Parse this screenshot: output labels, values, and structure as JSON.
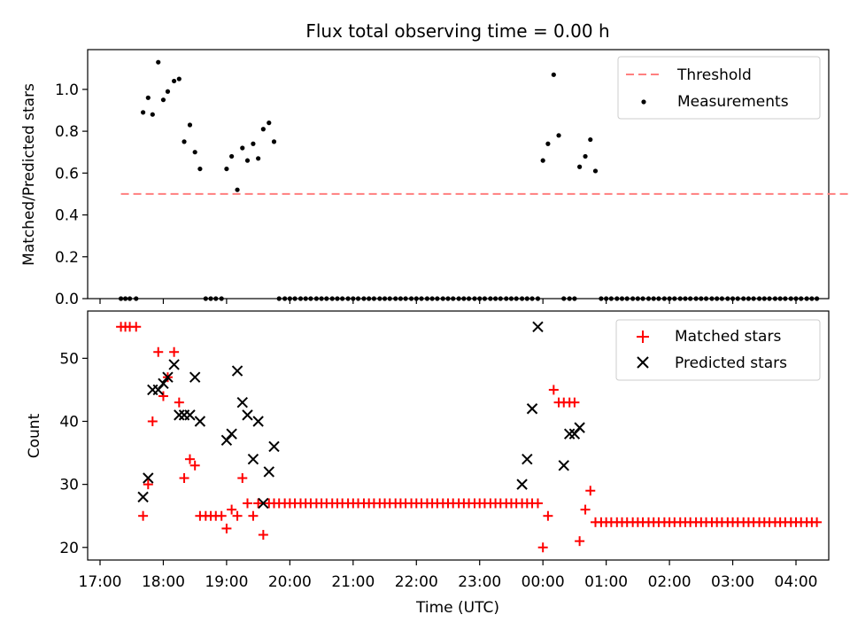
{
  "chart_data": [
    {
      "type": "scatter",
      "title": "Flux total observing time = 0.00 h",
      "xlabel": "",
      "ylabel": "Matched/Predicted stars",
      "ylim": [
        0,
        1.19
      ],
      "yticks": [
        0.0,
        0.2,
        0.4,
        0.6,
        0.8,
        1.0
      ],
      "ytick_labels": [
        "0.0",
        "0.2",
        "0.4",
        "0.6",
        "0.8",
        "1.0"
      ],
      "x_unit": "hours since 17:00 UTC (axis shows clock time)",
      "xlim": [
        -0.2,
        11.35
      ],
      "legend_position": "top-right",
      "threshold": {
        "name": "Threshold",
        "color": "#ff7f7f",
        "style": "dashed",
        "x": [
          0.33,
          11.9
        ],
        "y": [
          0.5,
          0.5
        ]
      },
      "series": [
        {
          "name": "Measurements",
          "marker": "dot",
          "color": "#000000",
          "x": [
            0.33,
            0.4,
            0.47,
            0.57,
            0.68,
            0.76,
            0.83,
            0.92,
            1.0,
            1.07,
            1.17,
            1.25,
            1.33,
            1.42,
            1.5,
            1.58,
            1.67,
            1.75,
            1.83,
            1.92,
            2.0,
            2.08,
            2.17,
            2.25,
            2.33,
            2.42,
            2.5,
            2.58,
            2.67,
            2.75,
            2.83,
            2.92,
            3.0,
            3.08,
            3.17,
            3.25,
            3.33,
            3.42,
            3.5,
            3.58,
            3.67,
            3.75,
            3.83,
            3.92,
            4.0,
            4.08,
            4.17,
            4.25,
            4.33,
            4.42,
            4.5,
            4.58,
            4.67,
            4.75,
            4.83,
            4.92,
            5.0,
            5.08,
            5.17,
            5.25,
            5.33,
            5.42,
            5.5,
            5.58,
            5.67,
            5.75,
            5.83,
            5.92,
            6.0,
            6.08,
            6.17,
            6.25,
            6.33,
            6.42,
            6.5,
            6.58,
            6.67,
            6.75,
            6.83,
            6.92,
            7.0,
            7.08,
            7.17,
            7.25,
            7.33,
            7.42,
            7.5,
            7.58,
            7.67,
            7.75,
            7.83,
            7.92,
            8.0,
            8.08,
            8.17,
            8.25,
            8.33,
            8.42,
            8.5,
            8.58,
            8.67,
            8.75,
            8.83,
            8.92,
            9.0,
            9.08,
            9.17,
            9.25,
            9.33,
            9.42,
            9.5,
            9.58,
            9.67,
            9.75,
            9.83,
            9.92,
            10.0,
            10.08,
            10.17,
            10.25,
            10.33,
            10.42,
            10.5,
            10.58,
            10.67,
            10.75,
            10.83,
            10.92,
            11.0,
            11.08,
            11.17,
            11.25,
            11.33
          ],
          "y": [
            0,
            0,
            0,
            0,
            0.89,
            0.96,
            0.88,
            1.13,
            0.95,
            0.99,
            1.04,
            1.05,
            0.75,
            0.83,
            0.7,
            0.62,
            0,
            0,
            0,
            0,
            0.62,
            0.68,
            0.52,
            0.72,
            0.66,
            0.74,
            0.67,
            0.81,
            0.84,
            0.75,
            0,
            0,
            0,
            0,
            0,
            0,
            0,
            0,
            0,
            0,
            0,
            0,
            0,
            0,
            0,
            0,
            0,
            0,
            0,
            0,
            0,
            0,
            0,
            0,
            0,
            0,
            0,
            0,
            0,
            0,
            0,
            0,
            0,
            0,
            0,
            0,
            0,
            0,
            0,
            0,
            0,
            0,
            0,
            0,
            0,
            0,
            0,
            0,
            0,
            0,
            0.66,
            0.74,
            1.07,
            0.78,
            0,
            0,
            0,
            0.63,
            0.68,
            0.76,
            0.61,
            0,
            0,
            0,
            0,
            0,
            0,
            0,
            0,
            0,
            0,
            0,
            0,
            0,
            0,
            0,
            0,
            0,
            0,
            0,
            0,
            0,
            0,
            0,
            0,
            0,
            0,
            0,
            0,
            0,
            0,
            0,
            0,
            0,
            0,
            0,
            0,
            0,
            0,
            0,
            0,
            0,
            0
          ]
        }
      ]
    },
    {
      "type": "scatter",
      "title": "",
      "xlabel": "Time (UTC)",
      "ylabel": "Count",
      "ylim": [
        18.0,
        57.5
      ],
      "yticks": [
        20,
        30,
        40,
        50
      ],
      "ytick_labels": [
        "20",
        "30",
        "40",
        "50"
      ],
      "x_unit": "hours since 17:00 UTC (axis shows clock time)",
      "xlim": [
        -0.2,
        11.35
      ],
      "xticks": [
        0,
        1,
        2,
        3,
        4,
        5,
        6,
        7,
        8,
        9,
        10,
        11
      ],
      "xtick_labels": [
        "17:00",
        "18:00",
        "19:00",
        "20:00",
        "21:00",
        "22:00",
        "23:00",
        "00:00",
        "01:00",
        "02:00",
        "03:00",
        "04:00"
      ],
      "legend_position": "top-right",
      "series": [
        {
          "name": "Matched stars",
          "marker": "plus",
          "color": "#ff0000",
          "x": [
            0.33,
            0.4,
            0.47,
            0.57,
            0.68,
            0.76,
            0.83,
            0.92,
            1.0,
            1.07,
            1.17,
            1.25,
            1.33,
            1.42,
            1.5,
            1.58,
            1.67,
            1.75,
            1.83,
            1.92,
            2.0,
            2.08,
            2.17,
            2.25,
            2.33,
            2.42,
            2.5,
            2.58,
            2.67,
            2.75,
            2.83,
            2.92,
            3.0,
            3.08,
            3.17,
            3.25,
            3.33,
            3.42,
            3.5,
            3.58,
            3.67,
            3.75,
            3.83,
            3.92,
            4.0,
            4.08,
            4.17,
            4.25,
            4.33,
            4.42,
            4.5,
            4.58,
            4.67,
            4.75,
            4.83,
            4.92,
            5.0,
            5.08,
            5.17,
            5.25,
            5.33,
            5.42,
            5.5,
            5.58,
            5.67,
            5.75,
            5.83,
            5.92,
            6.0,
            6.08,
            6.17,
            6.25,
            6.33,
            6.42,
            6.5,
            6.58,
            6.67,
            6.75,
            6.83,
            6.92,
            7.0,
            7.08,
            7.17,
            7.25,
            7.33,
            7.42,
            7.5,
            7.58,
            7.67,
            7.75,
            7.83,
            7.92,
            8.0,
            8.08,
            8.17,
            8.25,
            8.33,
            8.42,
            8.5,
            8.58,
            8.67,
            8.75,
            8.83,
            8.92,
            9.0,
            9.08,
            9.17,
            9.25,
            9.33,
            9.42,
            9.5,
            9.58,
            9.67,
            9.75,
            9.83,
            9.92,
            10.0,
            10.08,
            10.17,
            10.25,
            10.33,
            10.42,
            10.5,
            10.58,
            10.67,
            10.75,
            10.83,
            10.92,
            11.0,
            11.08,
            11.17,
            11.25,
            11.33
          ],
          "y": [
            55,
            55,
            55,
            55,
            25,
            30,
            40,
            51,
            44,
            47,
            51,
            43,
            31,
            34,
            33,
            25,
            25,
            25,
            25,
            25,
            23,
            26,
            25,
            31,
            27,
            25,
            27,
            22,
            27,
            27,
            27,
            27,
            27,
            27,
            27,
            27,
            27,
            27,
            27,
            27,
            27,
            27,
            27,
            27,
            27,
            27,
            27,
            27,
            27,
            27,
            27,
            27,
            27,
            27,
            27,
            27,
            27,
            27,
            27,
            27,
            27,
            27,
            27,
            27,
            27,
            27,
            27,
            27,
            27,
            27,
            27,
            27,
            27,
            27,
            27,
            27,
            27,
            27,
            27,
            27,
            20,
            25,
            45,
            43,
            43,
            43,
            43,
            21,
            26,
            29,
            24,
            24,
            24,
            24,
            24,
            24,
            24,
            24,
            24,
            24,
            24,
            24,
            24,
            24,
            24,
            24,
            24,
            24,
            24,
            24,
            24,
            24,
            24,
            24,
            24,
            24,
            24,
            24,
            24,
            24,
            24,
            24,
            24,
            24,
            24,
            24,
            24,
            24,
            24,
            24,
            24,
            24,
            24
          ]
        },
        {
          "name": "Predicted stars",
          "marker": "x",
          "color": "#000000",
          "x": [
            0.68,
            0.76,
            0.83,
            0.92,
            1.0,
            1.07,
            1.17,
            1.25,
            1.33,
            1.42,
            1.5,
            1.58,
            2.0,
            2.08,
            2.17,
            2.25,
            2.33,
            2.42,
            2.5,
            2.58,
            2.67,
            2.75,
            6.67,
            6.75,
            6.83,
            6.92,
            7.33,
            7.42,
            7.5,
            7.58
          ],
          "y": [
            28,
            31,
            45,
            45,
            46,
            47,
            49,
            41,
            41,
            41,
            47,
            40,
            37,
            38,
            48,
            43,
            41,
            34,
            40,
            27,
            32,
            36,
            30,
            34,
            42,
            55,
            33,
            38,
            38,
            39
          ]
        }
      ]
    }
  ]
}
